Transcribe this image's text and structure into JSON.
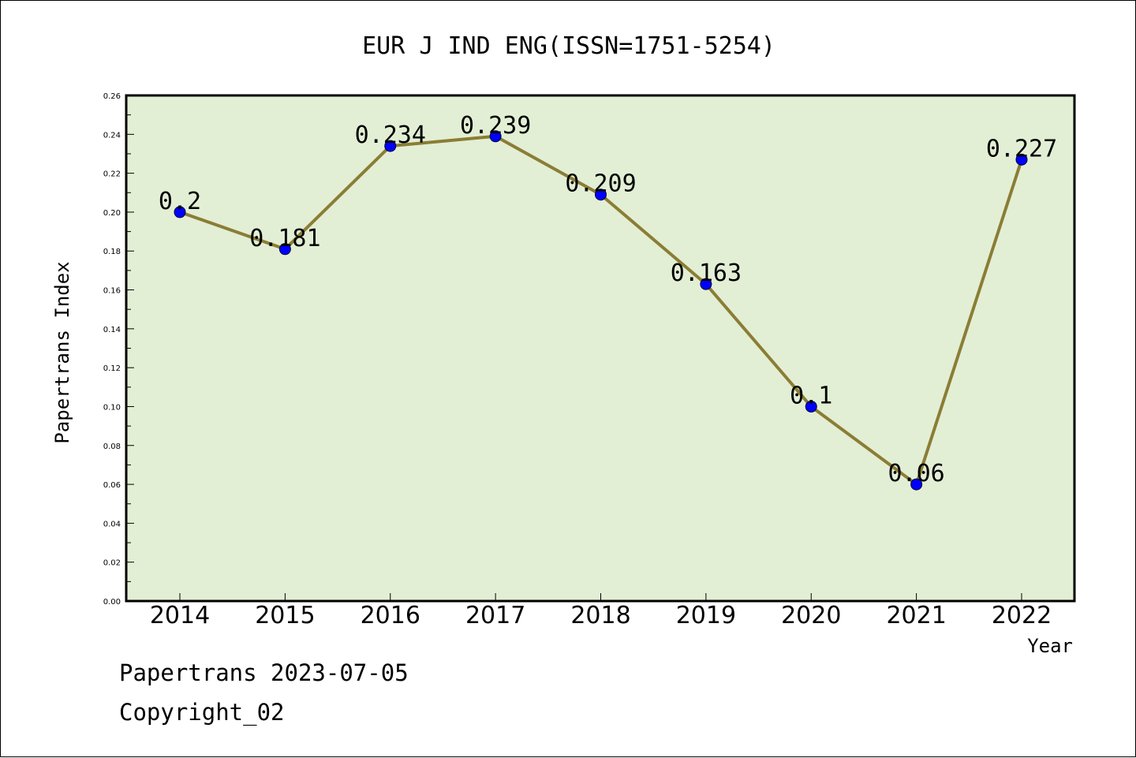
{
  "chart_data": {
    "type": "line",
    "title": "EUR J IND ENG(ISSN=1751-5254)",
    "xlabel": "Year",
    "ylabel": "Papertrans Index",
    "categories": [
      "2014",
      "2015",
      "2016",
      "2017",
      "2018",
      "2019",
      "2020",
      "2021",
      "2022"
    ],
    "series": [
      {
        "values": [
          0.2,
          0.181,
          0.234,
          0.239,
          0.209,
          0.163,
          0.1,
          0.06,
          0.227
        ],
        "data_labels": [
          "0.2",
          "0.181",
          "0.234",
          "0.239",
          "0.209",
          "0.163",
          "0.1",
          "0.06",
          "0.227"
        ]
      }
    ],
    "ylim": [
      0,
      0.26
    ],
    "y_ticks": [
      "0.00",
      "0.02",
      "0.04",
      "0.06",
      "0.08",
      "0.10",
      "0.12",
      "0.14",
      "0.16",
      "0.18",
      "0.20",
      "0.22",
      "0.24",
      "0.26"
    ],
    "grid": false,
    "legend": "none",
    "colors": {
      "plot_background": "#e2efd5",
      "line": "#8b7d35",
      "marker": "#0000ff"
    }
  },
  "footer": {
    "date_text": "Papertrans 2023-07-05",
    "copyright_text": "Copyright_02"
  }
}
